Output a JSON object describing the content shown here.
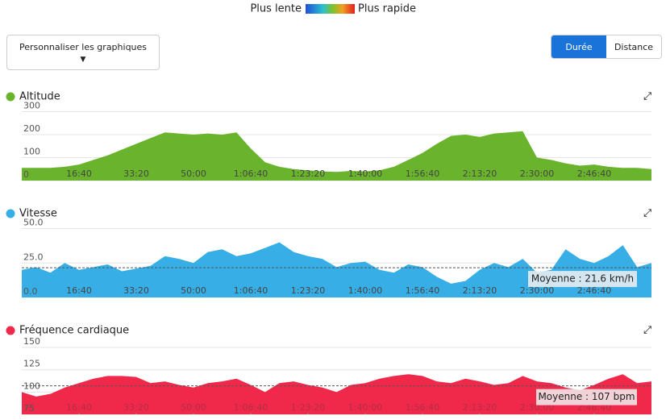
{
  "header": {
    "slow_label": "Plus lente",
    "fast_label": "Plus rapide"
  },
  "controls": {
    "customize": "Personnaliser les graphiques",
    "toggle": [
      "Durée",
      "Distance"
    ],
    "active": 0
  },
  "chart_data": [
    {
      "type": "area",
      "title": "Altitude",
      "color": "#6ab42d",
      "x": [
        0,
        250,
        500,
        750,
        1000,
        1250,
        1500,
        1750,
        2000,
        2250,
        2500,
        2750,
        3000,
        3250,
        3500,
        3750,
        4000,
        4250,
        4500,
        4750,
        5000,
        5250,
        5500,
        5750,
        6000,
        6250,
        6500,
        6750,
        7000,
        7250,
        7500,
        7750,
        8000,
        8250,
        8500,
        8750,
        9000,
        9250,
        9500,
        9750,
        10000,
        10250,
        10500,
        10750,
        11000
      ],
      "values": [
        55,
        55,
        55,
        60,
        70,
        90,
        110,
        135,
        160,
        185,
        210,
        205,
        200,
        205,
        200,
        210,
        140,
        80,
        60,
        50,
        45,
        40,
        38,
        42,
        40,
        45,
        60,
        90,
        120,
        160,
        195,
        200,
        190,
        205,
        210,
        215,
        100,
        90,
        75,
        65,
        70,
        60,
        55,
        55,
        50
      ],
      "xlim": [
        0,
        11000
      ],
      "ylim": [
        0,
        330
      ],
      "yticks": [
        0,
        100,
        200,
        300
      ],
      "xticks": [
        {
          "value": 1000,
          "label": "16:40"
        },
        {
          "value": 2000,
          "label": "33:20"
        },
        {
          "value": 3000,
          "label": "50:00"
        },
        {
          "value": 4000,
          "label": "1:06:40"
        },
        {
          "value": 5000,
          "label": "1:23:20"
        },
        {
          "value": 6000,
          "label": "1:40:00"
        },
        {
          "value": 7000,
          "label": "1:56:40"
        },
        {
          "value": 8000,
          "label": "2:13:20"
        },
        {
          "value": 9000,
          "label": "2:30:00"
        },
        {
          "value": 10000,
          "label": "2:46:40"
        }
      ]
    },
    {
      "type": "area",
      "title": "Vitesse",
      "color": "#37aee6",
      "x": [
        0,
        250,
        500,
        750,
        1000,
        1250,
        1500,
        1750,
        2000,
        2250,
        2500,
        2750,
        3000,
        3250,
        3500,
        3750,
        4000,
        4250,
        4500,
        4750,
        5000,
        5250,
        5500,
        5750,
        6000,
        6250,
        6500,
        6750,
        7000,
        7250,
        7500,
        7750,
        8000,
        8250,
        8500,
        8750,
        9000,
        9250,
        9500,
        9750,
        10000,
        10250,
        10500,
        10750,
        11000
      ],
      "values": [
        20,
        22,
        18,
        25,
        20,
        22,
        24,
        19,
        21,
        23,
        30,
        28,
        25,
        33,
        35,
        30,
        32,
        36,
        40,
        33,
        30,
        28,
        22,
        25,
        26,
        20,
        18,
        24,
        22,
        15,
        10,
        12,
        20,
        25,
        22,
        28,
        18,
        20,
        35,
        28,
        25,
        30,
        38,
        22,
        25
      ],
      "xlim": [
        0,
        11000
      ],
      "ylim": [
        0,
        55
      ],
      "yticks": [
        {
          "value": 0,
          "label": "0.0"
        },
        {
          "value": 25,
          "label": "25.0"
        },
        {
          "value": 50,
          "label": "50.0"
        }
      ],
      "average": {
        "value": 21.6,
        "label": "Moyenne : 21.6 km/h"
      },
      "xticks": [
        {
          "value": 1000,
          "label": "16:40"
        },
        {
          "value": 2000,
          "label": "33:20"
        },
        {
          "value": 3000,
          "label": "50:00"
        },
        {
          "value": 4000,
          "label": "1:06:40"
        },
        {
          "value": 5000,
          "label": "1:23:20"
        },
        {
          "value": 6000,
          "label": "1:40:00"
        },
        {
          "value": 7000,
          "label": "1:56:40"
        },
        {
          "value": 8000,
          "label": "2:13:20"
        },
        {
          "value": 9000,
          "label": "2:30:00"
        },
        {
          "value": 10000,
          "label": "2:46:40"
        }
      ]
    },
    {
      "type": "area",
      "title": "Fréquence cardiaque",
      "color": "#f0284a",
      "x": [
        0,
        250,
        500,
        750,
        1000,
        1250,
        1500,
        1750,
        2000,
        2250,
        2500,
        2750,
        3000,
        3250,
        3500,
        3750,
        4000,
        4250,
        4500,
        4750,
        5000,
        5250,
        5500,
        5750,
        6000,
        6250,
        6500,
        6750,
        7000,
        7250,
        7500,
        7750,
        8000,
        8250,
        8500,
        8750,
        9000,
        9250,
        9500,
        9750,
        10000,
        10250,
        10500,
        10750,
        11000
      ],
      "values": [
        100,
        95,
        98,
        105,
        110,
        115,
        118,
        118,
        117,
        110,
        112,
        108,
        105,
        110,
        112,
        115,
        108,
        100,
        110,
        112,
        108,
        105,
        100,
        108,
        110,
        115,
        118,
        120,
        118,
        112,
        110,
        115,
        112,
        108,
        110,
        118,
        112,
        110,
        105,
        102,
        108,
        115,
        120,
        110,
        112
      ],
      "xlim": [
        0,
        11000
      ],
      "ylim": [
        75,
        160
      ],
      "yticks": [
        75,
        100,
        125,
        150
      ],
      "average": {
        "value": 107,
        "label": "Moyenne : 107 bpm"
      },
      "xticks": [
        {
          "value": 1000,
          "label": "16:40"
        },
        {
          "value": 2000,
          "label": "33:20"
        },
        {
          "value": 3000,
          "label": "50:00"
        },
        {
          "value": 4000,
          "label": "1:06:40"
        },
        {
          "value": 5000,
          "label": "1:23:20"
        },
        {
          "value": 6000,
          "label": "1:40:00"
        },
        {
          "value": 7000,
          "label": "1:56:40"
        },
        {
          "value": 8000,
          "label": "2:13:20"
        },
        {
          "value": 9000,
          "label": "2:30:00"
        },
        {
          "value": 10000,
          "label": "2:46:40"
        }
      ]
    }
  ]
}
